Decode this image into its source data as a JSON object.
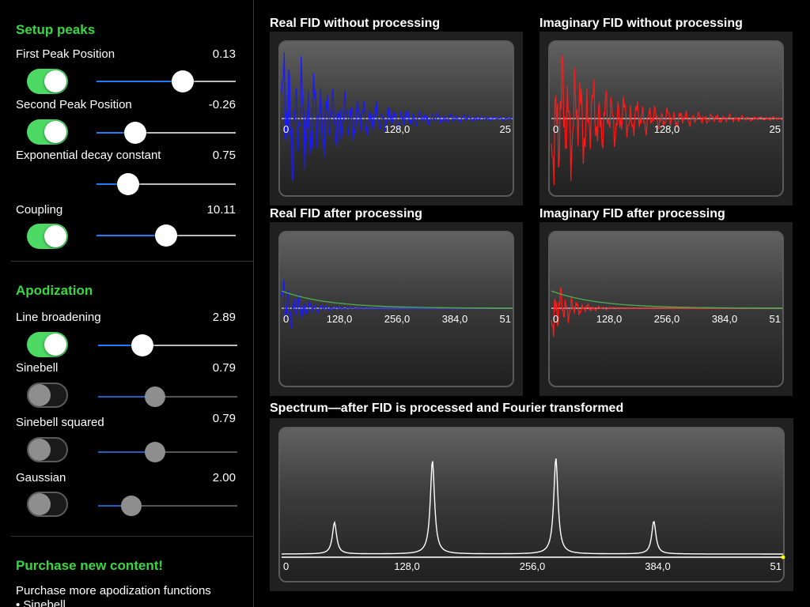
{
  "setup": {
    "title": "Setup peaks",
    "rows": [
      {
        "label": "First Peak Position",
        "value": "0.13",
        "toggle": true,
        "slider": 0.62
      },
      {
        "label": "Second Peak Position",
        "value": "-0.26",
        "toggle": true,
        "slider": 0.28
      },
      {
        "label": "Exponential decay constant",
        "value": "0.75",
        "toggle": null,
        "slider": 0.23
      },
      {
        "label": "Coupling",
        "value": "10.11",
        "toggle": true,
        "slider": 0.5
      }
    ]
  },
  "apodization": {
    "title": "Apodization",
    "rows": [
      {
        "label": "Line broadening",
        "value": "2.89",
        "toggle": true,
        "slider": 0.32
      },
      {
        "label": "Sinebell",
        "value": "0.79",
        "toggle": false,
        "slider": 0.41
      },
      {
        "label": "Sinebell squared",
        "value": "0.79",
        "toggle": false,
        "slider": 0.41
      },
      {
        "label": "Gaussian",
        "value": "2.00",
        "toggle": false,
        "slider": 0.24
      }
    ]
  },
  "purchase": {
    "title": "Purchase new content!",
    "line1": "Purchase more apodization functions",
    "line2": "• Sinebell"
  },
  "charts": {
    "real_raw": {
      "title": "Real FID without processing",
      "ticks": [
        "0",
        "128,0",
        "25"
      ],
      "color": "#1a1aff"
    },
    "imag_raw": {
      "title": "Imaginary FID without processing",
      "ticks": [
        "0",
        "128,0",
        "25"
      ],
      "color": "#ff1a1a"
    },
    "real_proc": {
      "title": "Real FID after processing",
      "ticks": [
        "0",
        "128,0",
        "256,0",
        "384,0",
        "51"
      ],
      "color": "#1a1aff"
    },
    "imag_proc": {
      "title": "Imaginary FID after processing",
      "ticks": [
        "0",
        "128,0",
        "256,0",
        "384,0",
        "51"
      ],
      "color": "#ff1a1a"
    },
    "spectrum": {
      "title": "Spectrum—after FID is processed and Fourier transformed",
      "ticks": [
        "0",
        "128,0",
        "256,0",
        "384,0",
        "51"
      ],
      "color": "#ffffff"
    }
  },
  "chart_data": [
    {
      "type": "line",
      "title": "Real FID without processing",
      "x_ticks": [
        "0",
        "128,0",
        "25"
      ],
      "xlim": [
        0,
        256
      ],
      "series": [
        {
          "values": "decaying oscillation"
        }
      ]
    },
    {
      "type": "line",
      "title": "Imaginary FID without processing",
      "x_ticks": [
        "0",
        "128,0",
        "25"
      ],
      "xlim": [
        0,
        256
      ],
      "series": [
        {
          "values": "decaying oscillation"
        }
      ]
    },
    {
      "type": "line",
      "title": "Real FID after processing",
      "x_ticks": [
        "0",
        "128,0",
        "256,0",
        "384,0",
        "51"
      ],
      "xlim": [
        0,
        512
      ],
      "series": [
        {
          "values": "decaying oscillation"
        },
        {
          "values": "apodization envelope"
        }
      ]
    },
    {
      "type": "line",
      "title": "Imaginary FID after processing",
      "x_ticks": [
        "0",
        "128,0",
        "256,0",
        "384,0",
        "51"
      ],
      "xlim": [
        0,
        512
      ],
      "series": [
        {
          "values": "decaying oscillation"
        },
        {
          "values": "apodization envelope"
        }
      ]
    },
    {
      "type": "line",
      "title": "Spectrum—after FID is processed and Fourier transformed",
      "x_ticks": [
        "0",
        "128,0",
        "256,0",
        "384,0",
        "51"
      ],
      "xlim": [
        0,
        512
      ],
      "peaks": [
        {
          "x": 54,
          "height": 0.25
        },
        {
          "x": 154,
          "height": 0.74
        },
        {
          "x": 280,
          "height": 0.76
        },
        {
          "x": 380,
          "height": 0.26
        }
      ]
    }
  ]
}
